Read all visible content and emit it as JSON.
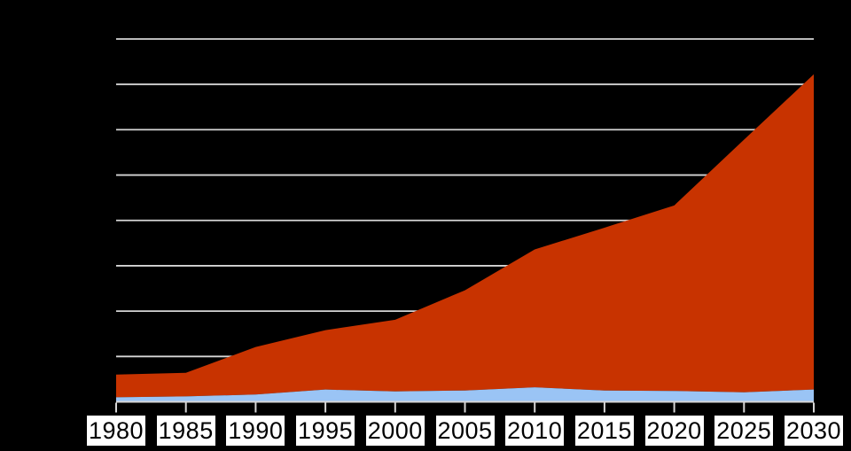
{
  "page": {
    "background_color": "#000000",
    "title": ""
  },
  "chart_data": {
    "type": "area",
    "stacked": true,
    "title": "",
    "subtitle": "",
    "xlabel": "",
    "ylabel": "",
    "legend": "none",
    "grid": true,
    "grid_color": "#d6d6d6",
    "axis_color": "#d6d6d6",
    "plot_background": "#000000",
    "y_axis_labels_visible": false,
    "y_units": "gridline units (y-axis unlabeled)",
    "ylim": [
      0,
      8
    ],
    "y_gridline_levels": 9,
    "categories": [
      "1980",
      "1985",
      "1990",
      "1995",
      "2000",
      "2005",
      "2010",
      "2015",
      "2020",
      "2025",
      "2030"
    ],
    "series": [
      {
        "name": "lower series (light blue band)",
        "color": "#9ac4f5",
        "values": [
          0.1,
          0.12,
          0.16,
          0.27,
          0.23,
          0.25,
          0.32,
          0.25,
          0.24,
          0.21,
          0.27
        ]
      },
      {
        "name": "upper series (orange-red area)",
        "color": "#c83300",
        "values": [
          0.5,
          0.52,
          1.05,
          1.31,
          1.58,
          2.21,
          3.04,
          3.59,
          4.09,
          5.57,
          6.95
        ]
      }
    ],
    "stacked_totals": [
      0.6,
      0.64,
      1.21,
      1.58,
      1.81,
      2.46,
      3.36,
      3.84,
      4.33,
      5.78,
      7.22
    ],
    "x_tick_label_style": {
      "background": "#ffffff",
      "color": "#000000"
    }
  }
}
